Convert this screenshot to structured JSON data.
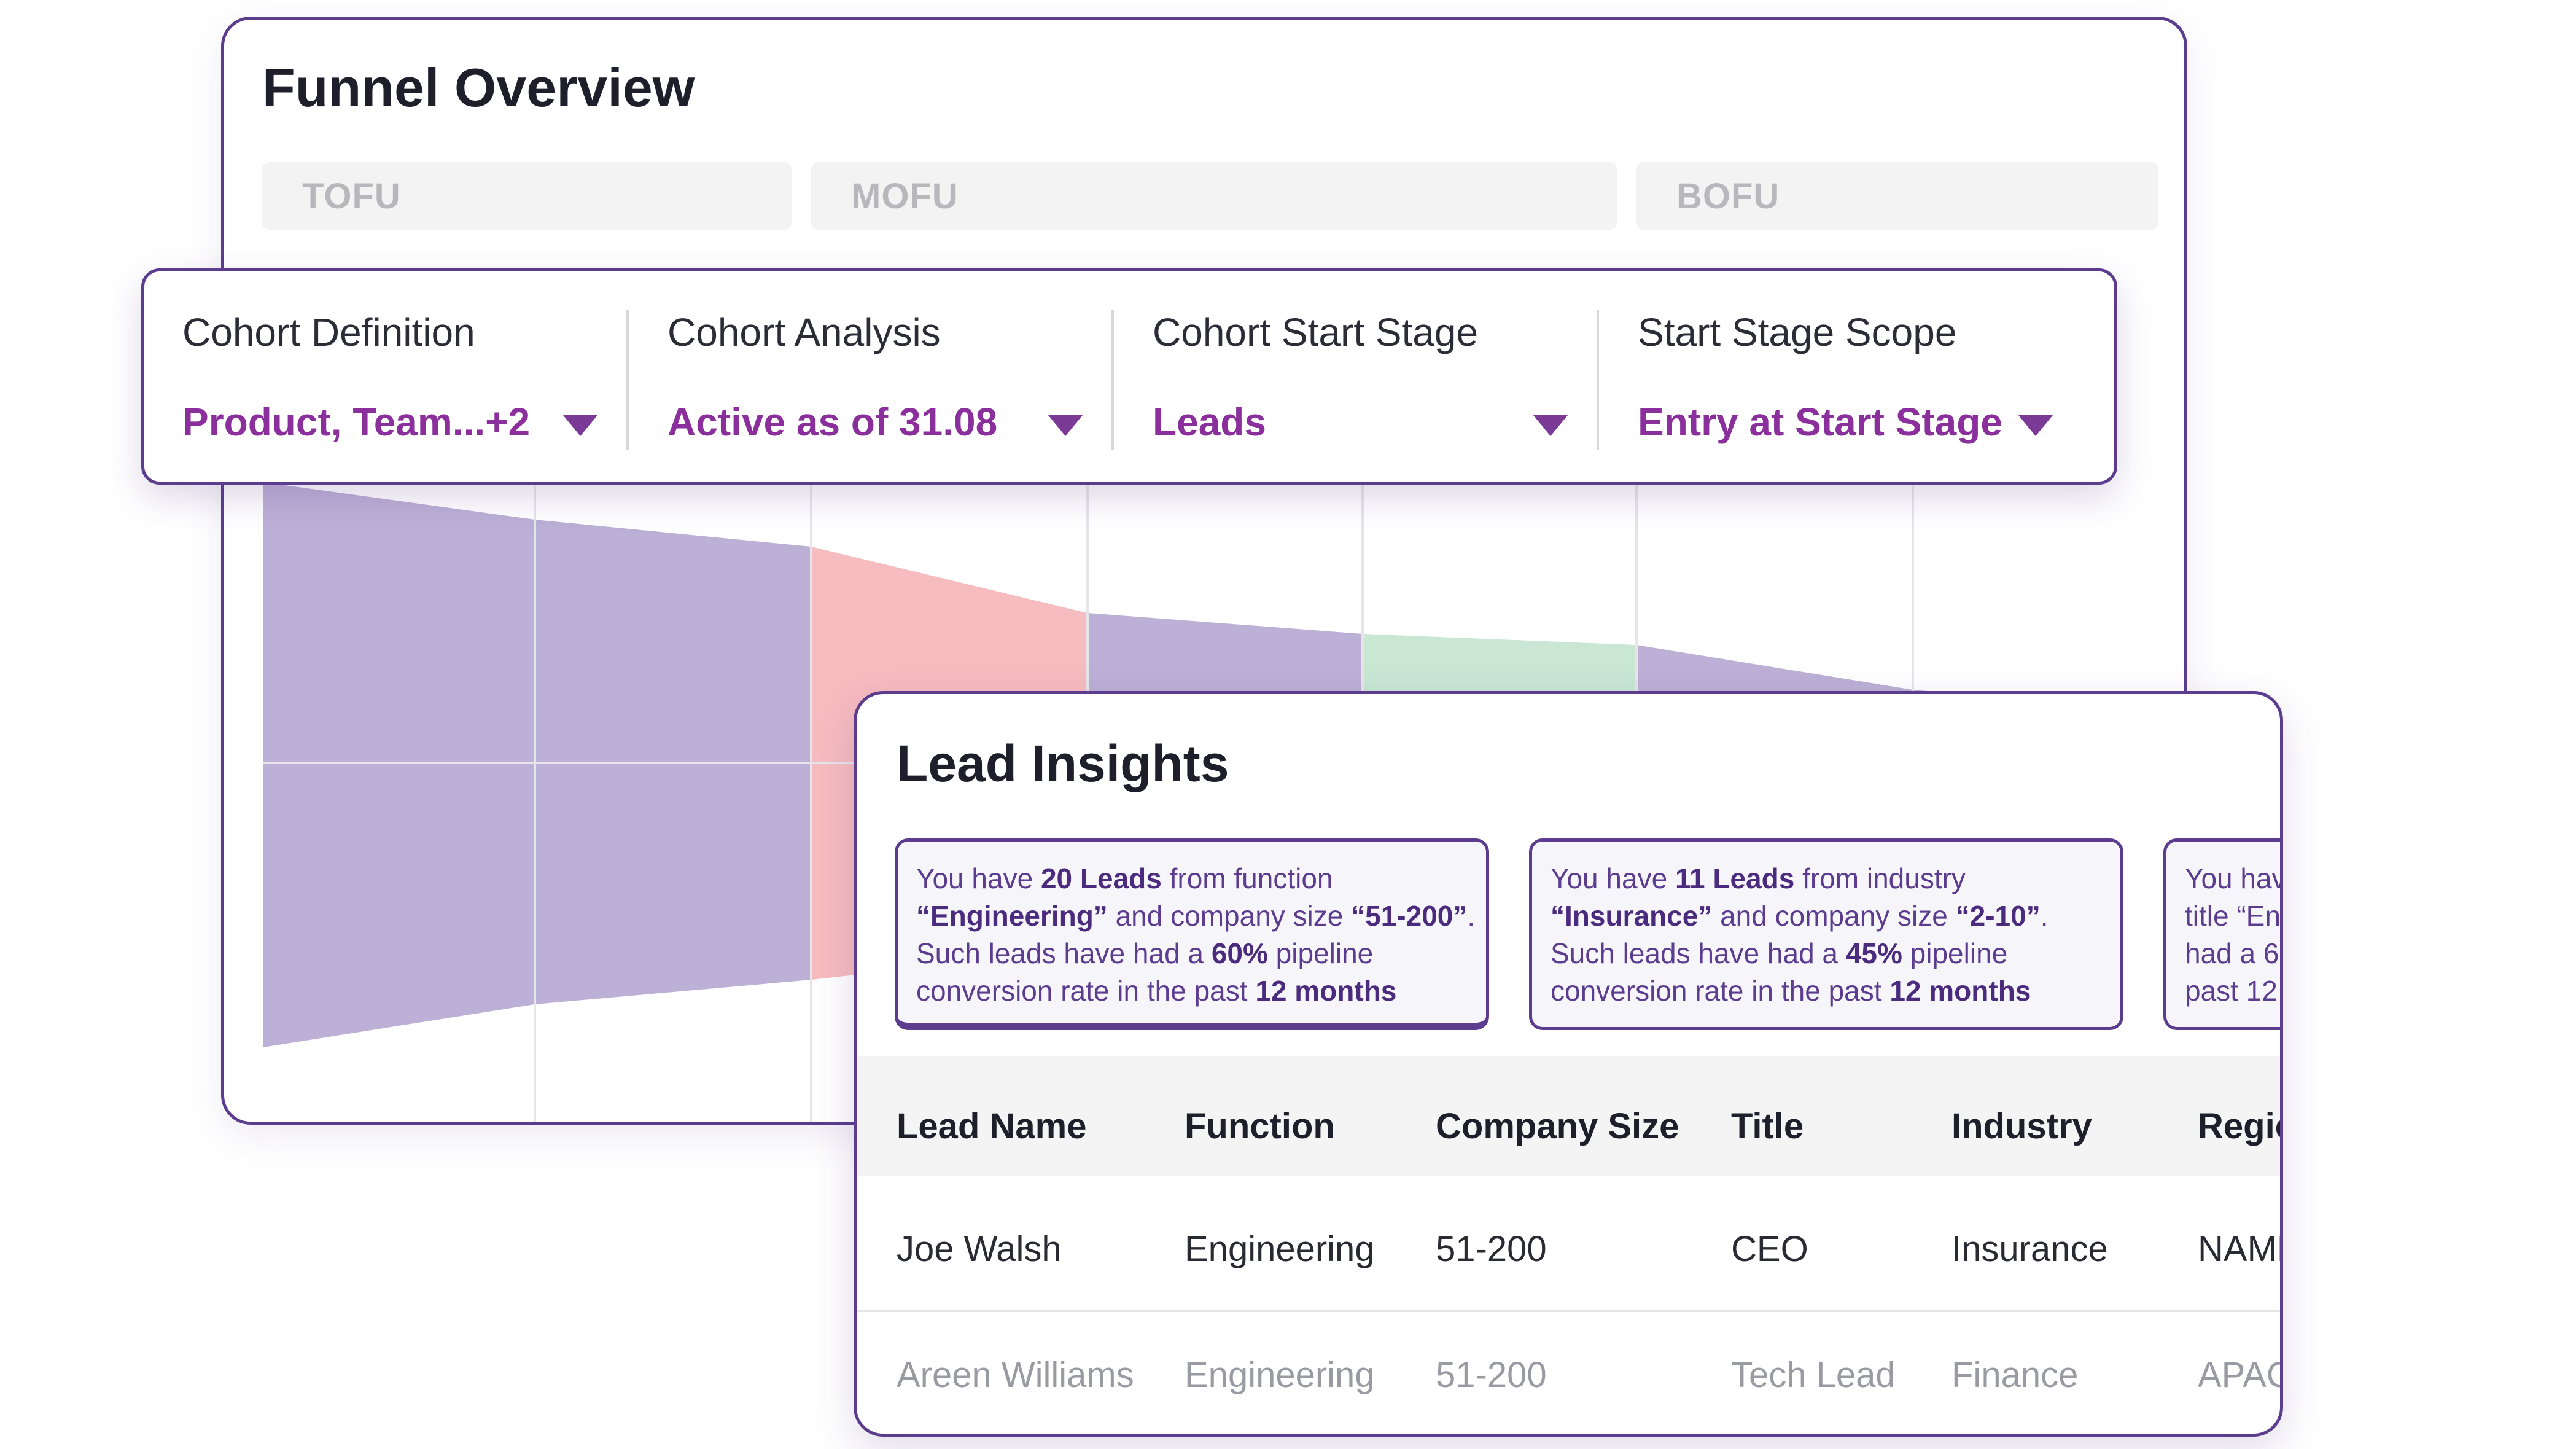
{
  "overview": {
    "title": "Funnel Overview",
    "stages": [
      "TOFU",
      "MOFU",
      "BOFU"
    ]
  },
  "filters": [
    {
      "label": "Cohort Definition",
      "value": "Product, Team...+2"
    },
    {
      "label": "Cohort Analysis",
      "value": "Active as of 31.08"
    },
    {
      "label": "Cohort Start Stage",
      "value": "Leads"
    },
    {
      "label": "Start Stage Scope",
      "value": "Entry at Start Stage"
    }
  ],
  "colors": {
    "accent": "#5b3c8f",
    "value_text": "#8a2f9c",
    "funnel_purple": "#bcb0d6",
    "funnel_pink": "#f7bcc0",
    "funnel_green": "#c9e7d3"
  },
  "insights": {
    "title": "Lead Insights",
    "cards": [
      {
        "l1a": "You have ",
        "l1b": "20 Leads",
        "l1c": " from function",
        "l2a": "“Engineering”",
        "l2b": " and company size ",
        "l2c": "“51-200”",
        "l2d": ".",
        "l3a": "Such leads have had a ",
        "l3b": "60%",
        "l3c": " pipeline",
        "l4a": "conversion rate in the past ",
        "l4b": "12 months"
      },
      {
        "l1a": "You have ",
        "l1b": "11 Leads",
        "l1c": " from industry",
        "l2a": "“Insurance”",
        "l2b": " and company size ",
        "l2c": "“2-10”",
        "l2d": ".",
        "l3a": "Such leads have had a ",
        "l3b": "45%",
        "l3c": " pipeline",
        "l4a": "conversion rate in the past ",
        "l4b": "12 months"
      },
      {
        "l1": "You hav",
        "l2": "title “En",
        "l3": "had a  6",
        "l4": "past 12"
      }
    ],
    "table": {
      "headers": [
        "Lead Name",
        "Function",
        "Company Size",
        "Title",
        "Industry",
        "Regio"
      ],
      "rows": [
        [
          "Joe Walsh",
          "Engineering",
          "51-200",
          "CEO",
          "Insurance",
          "NAME"
        ],
        [
          "Areen Williams",
          "Engineering",
          "51-200",
          "Tech Lead",
          "Finance",
          "APAC"
        ]
      ]
    }
  }
}
